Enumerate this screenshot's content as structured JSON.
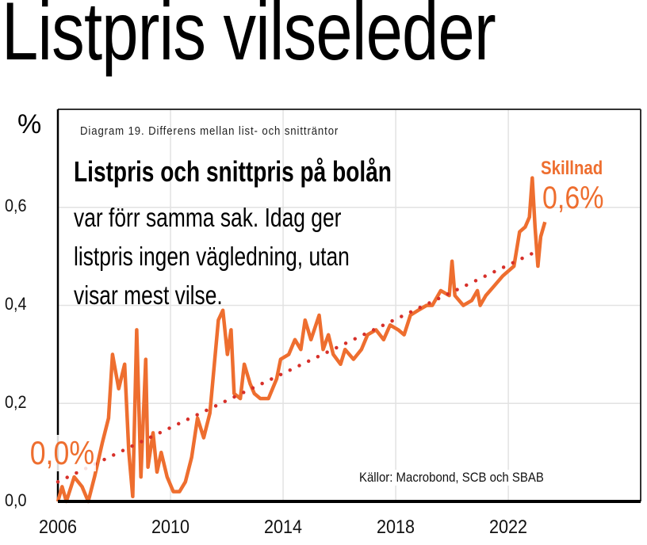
{
  "headline": "Listpris vilseleder",
  "unit_label": "%",
  "colors": {
    "series": "#ee6e2f",
    "trend": "#d7302a",
    "grid": "#e2e2e2"
  },
  "chart_data": {
    "type": "line",
    "title": "Diagram 19. Differens mellan list- och snitträntor",
    "lead": "Listpris och snittpris på bolån",
    "body_lines": [
      "var förr samma sak. Idag ger",
      "listpris ingen vägledning, utan",
      "visar mest vilse."
    ],
    "xlabel": "",
    "ylabel": "%",
    "xlim": [
      2006,
      2026.7
    ],
    "ylim": [
      0,
      0.8
    ],
    "x_ticks": [
      "2006",
      "2010",
      "2014",
      "2018",
      "2022"
    ],
    "x_tick_values": [
      2006,
      2010,
      2014,
      2018,
      2022
    ],
    "y_ticks": [
      "0,0",
      "0,2",
      "0,4",
      "0,6"
    ],
    "y_tick_values": [
      0,
      0.2,
      0.4,
      0.6
    ],
    "grid": true,
    "series": [
      {
        "name": "Skillnad",
        "style": "line",
        "x": [
          2006.0,
          2006.15,
          2006.3,
          2006.58,
          2006.86,
          2007.08,
          2007.3,
          2007.58,
          2007.8,
          2007.94,
          2008.16,
          2008.37,
          2008.52,
          2008.66,
          2008.8,
          2008.95,
          2009.12,
          2009.2,
          2009.38,
          2009.52,
          2009.67,
          2009.88,
          2010.1,
          2010.32,
          2010.53,
          2010.75,
          2010.96,
          2011.18,
          2011.4,
          2011.7,
          2011.86,
          2012.02,
          2012.15,
          2012.26,
          2012.48,
          2012.62,
          2012.83,
          2012.98,
          2013.19,
          2013.48,
          2013.77,
          2013.91,
          2014.2,
          2014.42,
          2014.63,
          2014.78,
          2014.99,
          2015.28,
          2015.42,
          2015.61,
          2015.78,
          2016.04,
          2016.2,
          2016.5,
          2016.78,
          2017.0,
          2017.3,
          2017.57,
          2017.8,
          2018.09,
          2018.3,
          2018.52,
          2018.8,
          2019.1,
          2019.3,
          2019.6,
          2019.9,
          2020.0,
          2020.1,
          2020.4,
          2020.7,
          2020.9,
          2021.0,
          2021.2,
          2021.5,
          2021.8,
          2022.0,
          2022.2,
          2022.4,
          2022.6,
          2022.75,
          2022.85,
          2022.95,
          2023.05,
          2023.15,
          2023.3
        ],
        "values": [
          0.0,
          0.03,
          0.0,
          0.05,
          0.03,
          0.0,
          0.05,
          0.12,
          0.17,
          0.3,
          0.23,
          0.28,
          0.1,
          0.01,
          0.35,
          0.05,
          0.29,
          0.07,
          0.14,
          0.06,
          0.1,
          0.05,
          0.02,
          0.02,
          0.04,
          0.09,
          0.17,
          0.13,
          0.18,
          0.37,
          0.39,
          0.3,
          0.35,
          0.22,
          0.21,
          0.28,
          0.24,
          0.22,
          0.21,
          0.21,
          0.25,
          0.29,
          0.3,
          0.33,
          0.31,
          0.37,
          0.33,
          0.38,
          0.31,
          0.34,
          0.3,
          0.28,
          0.31,
          0.29,
          0.31,
          0.34,
          0.35,
          0.33,
          0.36,
          0.35,
          0.34,
          0.38,
          0.39,
          0.4,
          0.4,
          0.43,
          0.42,
          0.49,
          0.42,
          0.4,
          0.41,
          0.43,
          0.4,
          0.42,
          0.44,
          0.46,
          0.47,
          0.48,
          0.55,
          0.56,
          0.58,
          0.66,
          0.56,
          0.48,
          0.54,
          0.57
        ]
      },
      {
        "name": "Trend",
        "style": "dotted",
        "x": [
          2006.0,
          2023.0
        ],
        "values": [
          0.04,
          0.51
        ]
      }
    ],
    "annotations": {
      "series_name": "Skillnad",
      "end_value": "0,6%",
      "start_value": "0,0%"
    },
    "source": "Källor: Macrobond, SCB och SBAB"
  }
}
